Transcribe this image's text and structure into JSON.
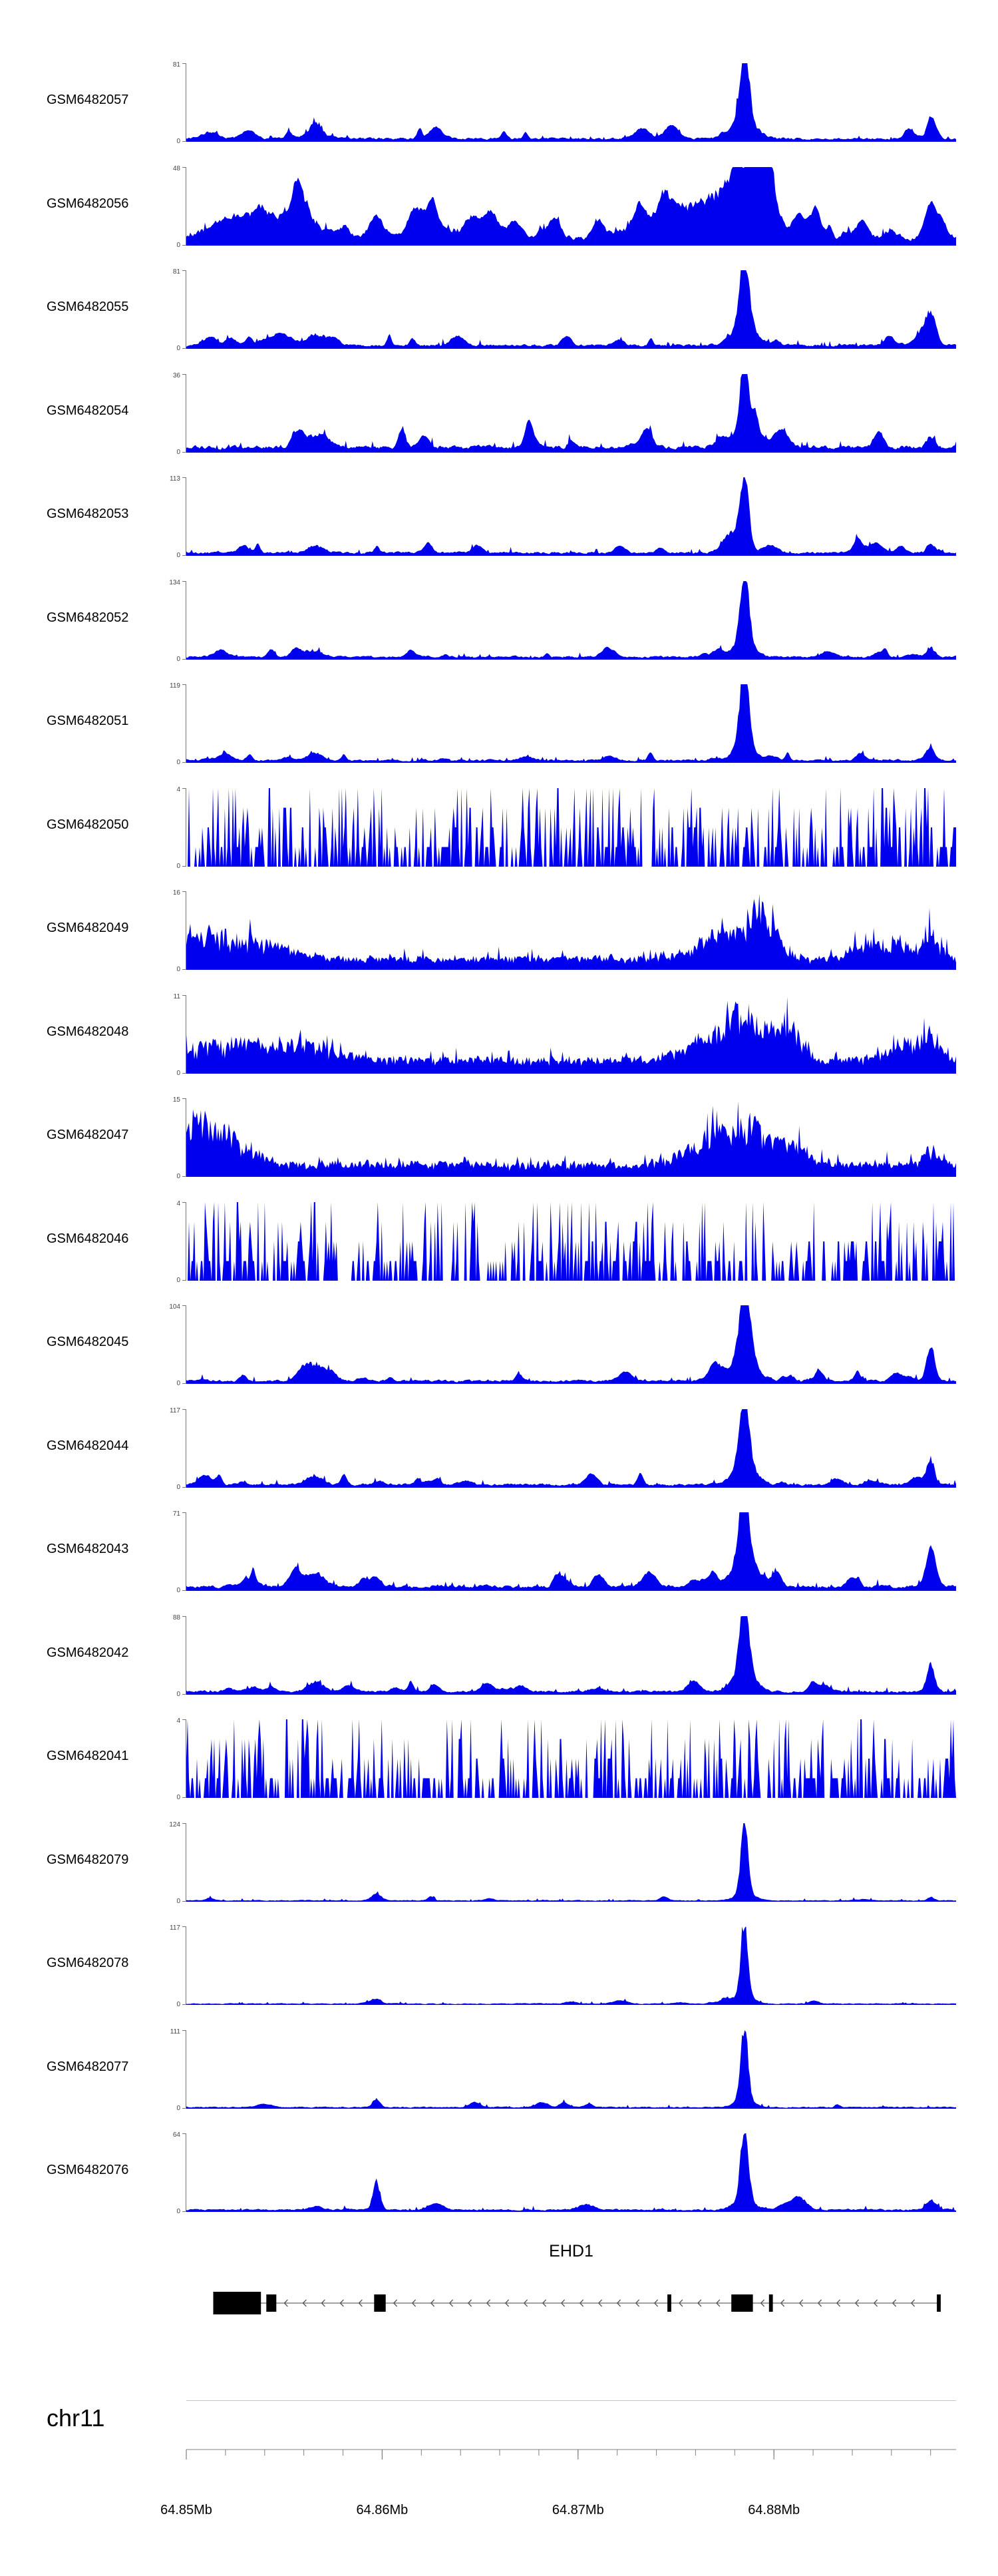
{
  "colors": {
    "signal": "#0000EE",
    "axis_line": "#808080",
    "track_axis": "#777777",
    "yaxis_label": "#444444",
    "gene_line": "#444444",
    "exon_fill": "#000000",
    "arrow": "#555555",
    "separator": "#c8c8c8",
    "text": "#000000"
  },
  "chart_data": {
    "type": "area",
    "description": "Genome browser coverage tracks over the EHD1 locus",
    "chromosome": "chr11",
    "region": {
      "start_mb": 64.85,
      "end_mb": 64.8893,
      "unit": "Mb"
    },
    "axis": {
      "unit": "Mb",
      "min_label": "0",
      "minor_step_mb": 0.002,
      "major_ticks": [
        {
          "mb": 64.85,
          "label": "64.85Mb"
        },
        {
          "mb": 64.86,
          "label": "64.86Mb"
        },
        {
          "mb": 64.87,
          "label": "64.87Mb"
        },
        {
          "mb": 64.88,
          "label": "64.88Mb"
        }
      ]
    },
    "gene": {
      "name": "EHD1",
      "strand": "-",
      "exons": [
        {
          "s": 0.035,
          "e": 0.097,
          "h": 34
        },
        {
          "s": 0.104,
          "e": 0.117,
          "h": 26
        },
        {
          "s": 0.244,
          "e": 0.259,
          "h": 26
        },
        {
          "s": 0.625,
          "e": 0.63,
          "h": 26
        },
        {
          "s": 0.708,
          "e": 0.736,
          "h": 26
        },
        {
          "s": 0.757,
          "e": 0.762,
          "h": 26
        },
        {
          "s": 0.975,
          "e": 0.98,
          "h": 26
        }
      ]
    },
    "tracks": [
      {
        "label": "GSM6482057",
        "ymax": 81,
        "ymin": 0,
        "style": "sharp",
        "noise": 0.05,
        "spike": 0.06,
        "peaks": [
          {
            "c": 0.725,
            "h": 0.93,
            "w": 0.006
          },
          {
            "c": 0.725,
            "h": 0.22,
            "w": 0.016
          },
          {
            "c": 0.967,
            "h": 0.13,
            "w": 0.005
          },
          {
            "c": 0.168,
            "h": 0.1,
            "w": 0.012
          },
          {
            "c": 0.03,
            "h": 0.08,
            "w": 0.01
          }
        ]
      },
      {
        "label": "GSM6482056",
        "ymax": 48,
        "ymin": 0,
        "style": "broad",
        "noise": 0.11,
        "spike": 0.09,
        "peaks": [
          {
            "c": 0.748,
            "h": 0.85,
            "w": 0.012
          },
          {
            "c": 0.738,
            "h": 0.72,
            "w": 0.02
          },
          {
            "c": 0.7,
            "h": 0.45,
            "w": 0.025
          },
          {
            "c": 0.65,
            "h": 0.3,
            "w": 0.03
          },
          {
            "c": 0.6,
            "h": 0.22,
            "w": 0.03
          },
          {
            "c": 0.13,
            "h": 0.28,
            "w": 0.04
          },
          {
            "c": 0.06,
            "h": 0.22,
            "w": 0.03
          },
          {
            "c": 0.33,
            "h": 0.12,
            "w": 0.05
          },
          {
            "c": 0.967,
            "h": 0.1,
            "w": 0.008
          }
        ]
      },
      {
        "label": "GSM6482055",
        "ymax": 81,
        "ymin": 0,
        "style": "sharp",
        "noise": 0.055,
        "spike": 0.07,
        "peaks": [
          {
            "c": 0.725,
            "h": 0.92,
            "w": 0.006
          },
          {
            "c": 0.725,
            "h": 0.26,
            "w": 0.015
          },
          {
            "c": 0.967,
            "h": 0.33,
            "w": 0.006
          },
          {
            "c": 0.957,
            "h": 0.15,
            "w": 0.01
          },
          {
            "c": 0.168,
            "h": 0.14,
            "w": 0.01
          },
          {
            "c": 0.19,
            "h": 0.1,
            "w": 0.008
          },
          {
            "c": 0.03,
            "h": 0.1,
            "w": 0.01
          }
        ]
      },
      {
        "label": "GSM6482054",
        "ymax": 36,
        "ymin": 0,
        "style": "sharp",
        "noise": 0.085,
        "spike": 0.1,
        "peaks": [
          {
            "c": 0.725,
            "h": 0.9,
            "w": 0.0055
          },
          {
            "c": 0.725,
            "h": 0.16,
            "w": 0.014
          },
          {
            "c": 0.967,
            "h": 0.14,
            "w": 0.005
          },
          {
            "c": 0.168,
            "h": 0.12,
            "w": 0.01
          },
          {
            "c": 0.45,
            "h": 0.08,
            "w": 0.006
          }
        ]
      },
      {
        "label": "GSM6482053",
        "ymax": 113,
        "ymin": 0,
        "style": "sharp",
        "noise": 0.05,
        "spike": 0.06,
        "peaks": [
          {
            "c": 0.725,
            "h": 0.93,
            "w": 0.0055
          },
          {
            "c": 0.712,
            "h": 0.2,
            "w": 0.012
          },
          {
            "c": 0.967,
            "h": 0.12,
            "w": 0.005
          },
          {
            "c": 0.168,
            "h": 0.09,
            "w": 0.01
          }
        ]
      },
      {
        "label": "GSM6482052",
        "ymax": 134,
        "ymin": 0,
        "style": "sharp",
        "noise": 0.045,
        "spike": 0.05,
        "peaks": [
          {
            "c": 0.725,
            "h": 0.94,
            "w": 0.0055
          },
          {
            "c": 0.725,
            "h": 0.2,
            "w": 0.013
          },
          {
            "c": 0.967,
            "h": 0.12,
            "w": 0.005
          },
          {
            "c": 0.168,
            "h": 0.08,
            "w": 0.009
          }
        ]
      },
      {
        "label": "GSM6482051",
        "ymax": 119,
        "ymin": 0,
        "style": "sharp",
        "noise": 0.04,
        "spike": 0.05,
        "peaks": [
          {
            "c": 0.725,
            "h": 0.92,
            "w": 0.0055
          },
          {
            "c": 0.725,
            "h": 0.18,
            "w": 0.012
          },
          {
            "c": 0.967,
            "h": 0.1,
            "w": 0.005
          },
          {
            "c": 0.168,
            "h": 0.09,
            "w": 0.009
          }
        ]
      },
      {
        "label": "GSM6482050",
        "ymax": 4,
        "ymin": 0,
        "style": "dense",
        "noise": 0,
        "spike": 0,
        "peaks": []
      },
      {
        "label": "GSM6482049",
        "ymax": 16,
        "ymin": 0,
        "style": "moderate",
        "noise": 0.22,
        "spike": 0,
        "peaks": [
          {
            "c": 0.748,
            "h": 0.72,
            "w": 0.02
          },
          {
            "c": 0.7,
            "h": 0.42,
            "w": 0.03
          },
          {
            "c": 0.03,
            "h": 0.45,
            "w": 0.03
          },
          {
            "c": 0.1,
            "h": 0.28,
            "w": 0.03
          },
          {
            "c": 0.967,
            "h": 0.4,
            "w": 0.012
          },
          {
            "c": 0.92,
            "h": 0.25,
            "w": 0.02
          },
          {
            "c": 0.88,
            "h": 0.2,
            "w": 0.02
          }
        ]
      },
      {
        "label": "GSM6482048",
        "ymax": 11,
        "ymin": 0,
        "style": "moderate",
        "noise": 0.26,
        "spike": 0,
        "peaks": [
          {
            "c": 0.73,
            "h": 0.68,
            "w": 0.025
          },
          {
            "c": 0.78,
            "h": 0.52,
            "w": 0.02
          },
          {
            "c": 0.68,
            "h": 0.38,
            "w": 0.03
          },
          {
            "c": 0.05,
            "h": 0.32,
            "w": 0.04
          },
          {
            "c": 0.15,
            "h": 0.28,
            "w": 0.04
          },
          {
            "c": 0.967,
            "h": 0.45,
            "w": 0.012
          },
          {
            "c": 0.93,
            "h": 0.28,
            "w": 0.02
          }
        ]
      },
      {
        "label": "GSM6482047",
        "ymax": 15,
        "ymin": 0,
        "style": "moderate",
        "noise": 0.24,
        "spike": 0,
        "peaks": [
          {
            "c": 0.02,
            "h": 0.6,
            "w": 0.02
          },
          {
            "c": 0.06,
            "h": 0.42,
            "w": 0.03
          },
          {
            "c": 0.73,
            "h": 0.62,
            "w": 0.022
          },
          {
            "c": 0.68,
            "h": 0.42,
            "w": 0.03
          },
          {
            "c": 0.78,
            "h": 0.32,
            "w": 0.02
          },
          {
            "c": 0.967,
            "h": 0.25,
            "w": 0.01
          }
        ]
      },
      {
        "label": "GSM6482046",
        "ymax": 4,
        "ymin": 0,
        "style": "dense",
        "noise": 0,
        "spike": 0,
        "peaks": []
      },
      {
        "label": "GSM6482045",
        "ymax": 104,
        "ymin": 0,
        "style": "sharp",
        "noise": 0.05,
        "spike": 0.06,
        "peaks": [
          {
            "c": 0.725,
            "h": 0.95,
            "w": 0.0065
          },
          {
            "c": 0.725,
            "h": 0.28,
            "w": 0.016
          },
          {
            "c": 0.967,
            "h": 0.45,
            "w": 0.005
          },
          {
            "c": 0.168,
            "h": 0.2,
            "w": 0.012
          },
          {
            "c": 0.152,
            "h": 0.12,
            "w": 0.008
          },
          {
            "c": 0.19,
            "h": 0.09,
            "w": 0.007
          }
        ]
      },
      {
        "label": "GSM6482044",
        "ymax": 117,
        "ymin": 0,
        "style": "sharp",
        "noise": 0.05,
        "spike": 0.06,
        "peaks": [
          {
            "c": 0.725,
            "h": 0.94,
            "w": 0.006
          },
          {
            "c": 0.725,
            "h": 0.24,
            "w": 0.015
          },
          {
            "c": 0.967,
            "h": 0.3,
            "w": 0.005
          },
          {
            "c": 0.168,
            "h": 0.12,
            "w": 0.01
          }
        ]
      },
      {
        "label": "GSM6482043",
        "ymax": 71,
        "ymin": 0,
        "style": "sharp",
        "noise": 0.07,
        "spike": 0.08,
        "peaks": [
          {
            "c": 0.725,
            "h": 0.93,
            "w": 0.007
          },
          {
            "c": 0.725,
            "h": 0.28,
            "w": 0.018
          },
          {
            "c": 0.967,
            "h": 0.35,
            "w": 0.006
          },
          {
            "c": 0.168,
            "h": 0.17,
            "w": 0.012
          },
          {
            "c": 0.08,
            "h": 0.1,
            "w": 0.01
          }
        ]
      },
      {
        "label": "GSM6482042",
        "ymax": 88,
        "ymin": 0,
        "style": "sharp",
        "noise": 0.05,
        "spike": 0.06,
        "peaks": [
          {
            "c": 0.725,
            "h": 0.94,
            "w": 0.006
          },
          {
            "c": 0.725,
            "h": 0.24,
            "w": 0.015
          },
          {
            "c": 0.967,
            "h": 0.35,
            "w": 0.005
          },
          {
            "c": 0.168,
            "h": 0.12,
            "w": 0.01
          }
        ]
      },
      {
        "label": "GSM6482041",
        "ymax": 4,
        "ymin": 0,
        "style": "dense",
        "noise": 0,
        "spike": 0,
        "peaks": []
      },
      {
        "label": "GSM6482079",
        "ymax": 124,
        "ymin": 0,
        "style": "clean",
        "noise": 0.02,
        "spike": 0.03,
        "peaks": [
          {
            "c": 0.725,
            "h": 0.96,
            "w": 0.0045
          },
          {
            "c": 0.725,
            "h": 0.1,
            "w": 0.012
          },
          {
            "c": 0.247,
            "h": 0.05,
            "w": 0.006
          },
          {
            "c": 0.967,
            "h": 0.05,
            "w": 0.004
          }
        ]
      },
      {
        "label": "GSM6482078",
        "ymax": 117,
        "ymin": 0,
        "style": "clean",
        "noise": 0.02,
        "spike": 0.03,
        "peaks": [
          {
            "c": 0.725,
            "h": 0.96,
            "w": 0.0045
          },
          {
            "c": 0.725,
            "h": 0.1,
            "w": 0.012
          },
          {
            "c": 0.247,
            "h": 0.07,
            "w": 0.006
          },
          {
            "c": 0.7,
            "h": 0.06,
            "w": 0.008
          }
        ]
      },
      {
        "label": "GSM6482077",
        "ymax": 111,
        "ymin": 0,
        "style": "clean",
        "noise": 0.025,
        "spike": 0.035,
        "peaks": [
          {
            "c": 0.725,
            "h": 0.96,
            "w": 0.0045
          },
          {
            "c": 0.725,
            "h": 0.1,
            "w": 0.012
          },
          {
            "c": 0.247,
            "h": 0.1,
            "w": 0.005
          }
        ]
      },
      {
        "label": "GSM6482076",
        "ymax": 64,
        "ymin": 0,
        "style": "clean",
        "noise": 0.035,
        "spike": 0.05,
        "peaks": [
          {
            "c": 0.725,
            "h": 0.96,
            "w": 0.005
          },
          {
            "c": 0.725,
            "h": 0.13,
            "w": 0.013
          },
          {
            "c": 0.247,
            "h": 0.38,
            "w": 0.0045
          },
          {
            "c": 0.52,
            "h": 0.07,
            "w": 0.01
          },
          {
            "c": 0.8,
            "h": 0.08,
            "w": 0.01
          },
          {
            "c": 0.967,
            "h": 0.06,
            "w": 0.005
          }
        ]
      }
    ]
  }
}
